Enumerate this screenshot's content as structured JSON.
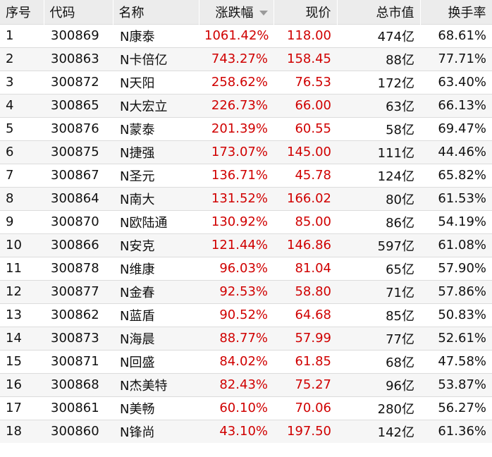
{
  "table": {
    "headers": {
      "index": "序号",
      "code": "代码",
      "name": "名称",
      "change": "涨跌幅",
      "price": "现价",
      "market_cap": "总市值",
      "turnover": "换手率"
    },
    "sort_column": "change",
    "sort_direction": "descending",
    "rows": [
      {
        "index": "1",
        "code": "300869",
        "name": "N康泰",
        "change": "1061.42%",
        "price": "118.00",
        "market_cap": "474亿",
        "turnover": "68.61%"
      },
      {
        "index": "2",
        "code": "300863",
        "name": "N卡倍亿",
        "change": "743.27%",
        "price": "158.45",
        "market_cap": "88亿",
        "turnover": "77.71%"
      },
      {
        "index": "3",
        "code": "300872",
        "name": "N天阳",
        "change": "258.62%",
        "price": "76.53",
        "market_cap": "172亿",
        "turnover": "63.40%"
      },
      {
        "index": "4",
        "code": "300865",
        "name": "N大宏立",
        "change": "226.73%",
        "price": "66.00",
        "market_cap": "63亿",
        "turnover": "66.13%"
      },
      {
        "index": "5",
        "code": "300876",
        "name": "N蒙泰",
        "change": "201.39%",
        "price": "60.55",
        "market_cap": "58亿",
        "turnover": "69.47%"
      },
      {
        "index": "6",
        "code": "300875",
        "name": "N捷强",
        "change": "173.07%",
        "price": "145.00",
        "market_cap": "111亿",
        "turnover": "44.46%"
      },
      {
        "index": "7",
        "code": "300867",
        "name": "N圣元",
        "change": "136.71%",
        "price": "45.78",
        "market_cap": "124亿",
        "turnover": "65.82%"
      },
      {
        "index": "8",
        "code": "300864",
        "name": "N南大",
        "change": "131.52%",
        "price": "166.02",
        "market_cap": "80亿",
        "turnover": "61.53%"
      },
      {
        "index": "9",
        "code": "300870",
        "name": "N欧陆通",
        "change": "130.92%",
        "price": "85.00",
        "market_cap": "86亿",
        "turnover": "54.19%"
      },
      {
        "index": "10",
        "code": "300866",
        "name": "N安克",
        "change": "121.44%",
        "price": "146.86",
        "market_cap": "597亿",
        "turnover": "61.08%"
      },
      {
        "index": "11",
        "code": "300878",
        "name": "N维康",
        "change": "96.03%",
        "price": "81.04",
        "market_cap": "65亿",
        "turnover": "57.90%"
      },
      {
        "index": "12",
        "code": "300877",
        "name": "N金春",
        "change": "92.53%",
        "price": "58.80",
        "market_cap": "71亿",
        "turnover": "57.86%"
      },
      {
        "index": "13",
        "code": "300862",
        "name": "N蓝盾",
        "change": "90.52%",
        "price": "64.68",
        "market_cap": "85亿",
        "turnover": "50.83%"
      },
      {
        "index": "14",
        "code": "300873",
        "name": "N海晨",
        "change": "88.77%",
        "price": "57.99",
        "market_cap": "77亿",
        "turnover": "52.61%"
      },
      {
        "index": "15",
        "code": "300871",
        "name": "N回盛",
        "change": "84.02%",
        "price": "61.85",
        "market_cap": "68亿",
        "turnover": "47.58%"
      },
      {
        "index": "16",
        "code": "300868",
        "name": "N杰美特",
        "change": "82.43%",
        "price": "75.27",
        "market_cap": "96亿",
        "turnover": "53.87%"
      },
      {
        "index": "17",
        "code": "300861",
        "name": "N美畅",
        "change": "60.10%",
        "price": "70.06",
        "market_cap": "280亿",
        "turnover": "56.27%"
      },
      {
        "index": "18",
        "code": "300860",
        "name": "N锋尚",
        "change": "43.10%",
        "price": "197.50",
        "market_cap": "142亿",
        "turnover": "61.36%"
      }
    ]
  },
  "colors": {
    "up": "#d00000",
    "header_bg": "#ececec",
    "row_alt_bg": "#f6f6f6"
  }
}
